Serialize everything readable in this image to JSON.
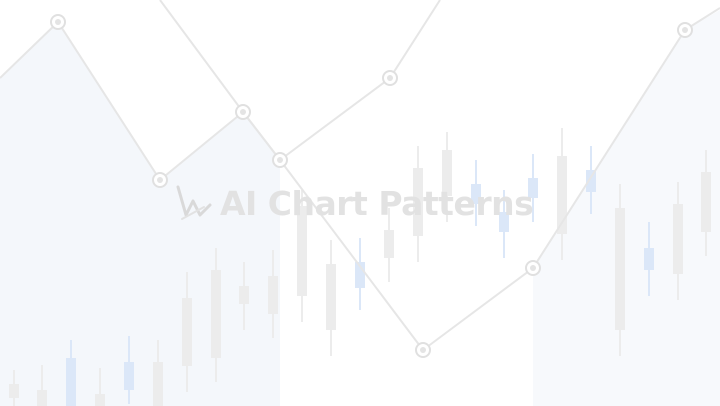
{
  "brand": {
    "name": "AI Chart Patterns",
    "logo_icon": "zigzag-chart-logo-icon",
    "text_color": "#e2e2e2"
  },
  "background": {
    "description_icon": "candlestick-line-chart-watermark",
    "candle_color": "#ececec",
    "accent_candle_color": "#dbe7f8",
    "line_color": "#e6e6e6",
    "area_color": "#f3f6fb"
  }
}
